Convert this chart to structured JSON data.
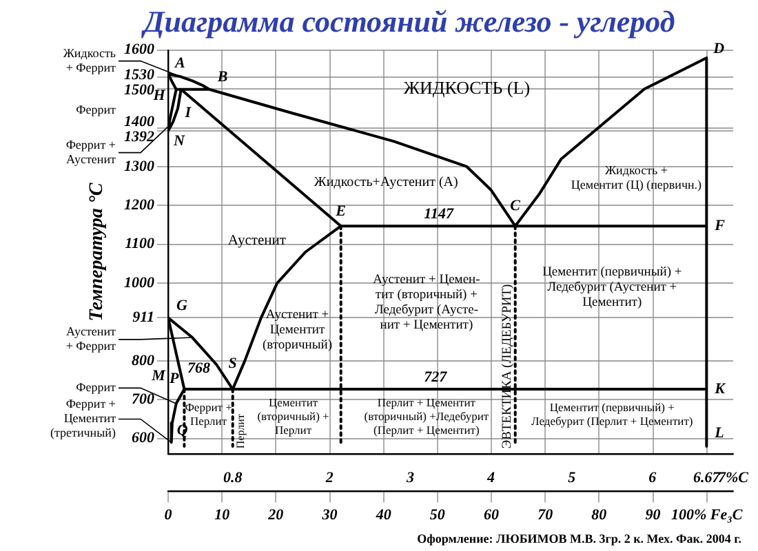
{
  "chart_data": {
    "type": "line",
    "title": "Диаграмма состояний железо - углерод",
    "ylabel": "Температура °C",
    "xlim": [
      0,
      7
    ],
    "xticks": [
      0.8,
      2,
      3,
      4,
      5,
      6,
      6.67,
      {
        "value": 7,
        "label": "7%C"
      }
    ],
    "x2lim": [
      0,
      104.9
    ],
    "x2ticks": [
      0,
      10,
      20,
      30,
      40,
      50,
      60,
      70,
      80,
      90,
      {
        "value": 100,
        "label": "100% Fe₃C"
      }
    ],
    "ylim": [
      560,
      1600
    ],
    "yticks": [
      600,
      700,
      800,
      911,
      1000,
      1100,
      1200,
      1300,
      1392,
      1400,
      1500,
      1530,
      1600
    ],
    "grid": true,
    "legend": false,
    "series": [
      {
        "color": "#000000",
        "x": [
          0,
          0.15,
          0.3,
          0.42,
          0.51,
          null,
          0,
          0.05,
          0.1,
          0.51,
          1.5,
          2.8,
          3.7,
          4.0,
          4.3,
          4.6,
          4.87,
          5.9,
          6.67,
          6.67,
          null,
          0.1,
          0.05,
          0.02,
          0,
          0.06,
          0.12,
          0.16,
          2.14,
          6.67,
          null,
          2.14,
          1.7,
          1.35,
          1.15,
          0.95,
          0.8,
          0.6,
          0.3,
          0,
          0.2,
          0.1,
          0.05,
          0.04,
          null,
          0.2,
          6.67
        ],
        "values": [
          1539,
          1532,
          1521,
          1510,
          1499,
          null,
          1539,
          1518,
          1499,
          1499,
          1440,
          1365,
          1300,
          1240,
          1147,
          1230,
          1320,
          1500,
          1580,
          580,
          null,
          1499,
          1450,
          1420,
          1392,
          1415,
          1450,
          1499,
          1147,
          1147,
          null,
          1147,
          1080,
          1000,
          910,
          800,
          727,
          790,
          860,
          911,
          727,
          690,
          640,
          590,
          null,
          727,
          727
        ]
      },
      {
        "color": "#000000",
        "line_style": "dotted",
        "x": [
          0.2,
          0.2,
          null,
          0.8,
          0.8,
          null,
          2.14,
          2.14,
          null,
          4.3,
          4.3
        ],
        "values": [
          727,
          580,
          null,
          727,
          580,
          null,
          1147,
          580,
          null,
          1147,
          580
        ]
      }
    ],
    "annotations": [
      "ЖИДКОСТЬ (L)",
      "Жидкость+Аустенит (А)",
      "Жидкость +\nЦементит (Ц) (первичн.)",
      "Аустенит",
      "Аустенит +\nЦементит\n(вторичный)",
      "Аустенит + Цемен-\nтит (вторичный) +\nЛедебурит (Аусте-\nнит + Цементит)",
      "Цементит (первичный) +\nЛедебурит (Аустенит +\nЦементит)",
      "Феррит +\nПерлит",
      "Цементит\n(вторичный) +\nПерлит",
      "Перлит + Цементит\n(вторичный) +Ледебурит\n(Перлит + Цементит)",
      "Цементит (первичный) +\nЛедебурит (Перлит + Цементит)",
      "768",
      "ЭВТЕКТИКА (ЛЕДЕБУРИТ)",
      "Перлит",
      "M",
      "Феррит",
      "Оформление: ЛЮБИМОВ М.В. 3гр. 2 к. Мех. Фак. 2004 г.",
      {
        "text": "1147",
        "x": 3.1,
        "y": 1147
      },
      {
        "text": "727",
        "x": 3.1,
        "y": 727
      },
      {
        "text": "A",
        "x": 0,
        "y": 1539
      },
      {
        "text": "B",
        "x": 0.51,
        "y": 1499
      },
      {
        "text": "H",
        "x": 0.1,
        "y": 1499
      },
      {
        "text": "I",
        "x": 0.16,
        "y": 1499
      },
      {
        "text": "N",
        "x": 0,
        "y": 1392
      },
      {
        "text": "E",
        "x": 2.14,
        "y": 1147
      },
      {
        "text": "C",
        "x": 4.3,
        "y": 1147
      },
      {
        "text": "D",
        "x": 6.67,
        "y": 1580
      },
      {
        "text": "F",
        "x": 6.67,
        "y": 1147
      },
      {
        "text": "K",
        "x": 6.67,
        "y": 727
      },
      {
        "text": "L",
        "x": 6.67,
        "y": 580
      },
      {
        "text": "G",
        "x": 0,
        "y": 911
      },
      {
        "text": "S",
        "x": 0.8,
        "y": 727
      },
      {
        "text": "P",
        "x": 0.2,
        "y": 727
      },
      {
        "text": "Q",
        "x": 0.04,
        "y": 590
      },
      {
        "text": "Жидкость\n+ Феррит",
        "x": 0.15,
        "y": 1532
      },
      {
        "text": "Феррит +\nАустенит",
        "x": 0.06,
        "y": 1415
      },
      {
        "text": "Аустенит\n+ Феррит",
        "x": 0.3,
        "y": 860
      },
      {
        "text": "Феррит",
        "x": 0.1,
        "y": 690
      },
      {
        "text": "Феррит +\nЦементит\n(третичный)",
        "x": 0.04,
        "y": 590
      }
    ]
  }
}
